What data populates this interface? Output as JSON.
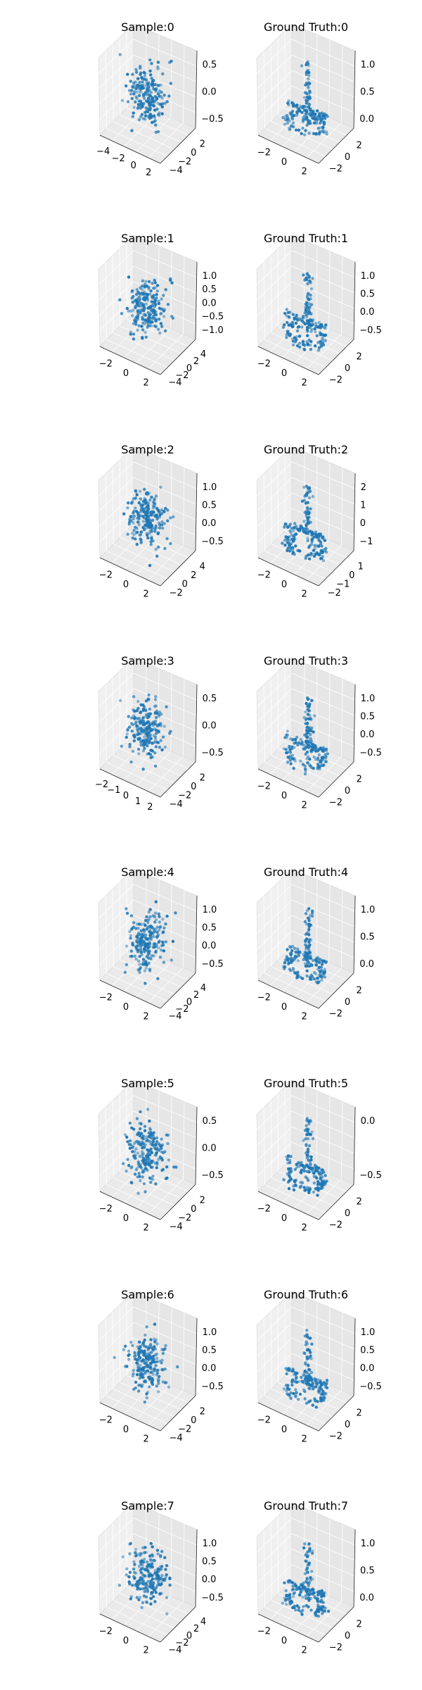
{
  "figure": {
    "background": "#ffffff",
    "pane_colors": {
      "back_left": "#f0f0f0",
      "back_right": "#e6e6e6",
      "floor": "#eaeaea"
    },
    "point_color": "#1f77b4"
  },
  "chart_data": [
    {
      "type": "scatter",
      "projection": "3d",
      "title": "Sample:0",
      "xticks": [
        "−4",
        "−2",
        "0",
        "2"
      ],
      "yticks": [
        "2",
        "0",
        "−2",
        "−4"
      ],
      "zticks": [
        "0.5",
        "0.0",
        "−0.5"
      ],
      "x": [],
      "y": [],
      "z": []
    },
    {
      "type": "scatter",
      "projection": "3d",
      "title": "Ground Truth:0",
      "xticks": [
        "−2",
        "0",
        "2"
      ],
      "yticks": [
        "2",
        "0",
        "−2"
      ],
      "zticks": [
        "1.0",
        "0.5",
        "0.0"
      ],
      "x": [],
      "y": [],
      "z": []
    },
    {
      "type": "scatter",
      "projection": "3d",
      "title": "Sample:1",
      "xticks": [
        "−2",
        "0",
        "2"
      ],
      "yticks": [
        "4",
        "2",
        "0",
        "−2",
        "−4"
      ],
      "zticks": [
        "1.0",
        "0.5",
        "0.0",
        "−0.5",
        "−1.0"
      ],
      "x": [],
      "y": [],
      "z": []
    },
    {
      "type": "scatter",
      "projection": "3d",
      "title": "Ground Truth:1",
      "xticks": [
        "−2",
        "0",
        "2"
      ],
      "yticks": [
        "2",
        "0",
        "−2"
      ],
      "zticks": [
        "1.0",
        "0.5",
        "0.0",
        "−0.5"
      ],
      "x": [],
      "y": [],
      "z": []
    },
    {
      "type": "scatter",
      "projection": "3d",
      "title": "Sample:2",
      "xticks": [
        "−2",
        "0",
        "2"
      ],
      "yticks": [
        "4",
        "2",
        "0",
        "−2"
      ],
      "zticks": [
        "1.0",
        "0.5",
        "0.0",
        "−0.5"
      ],
      "x": [],
      "y": [],
      "z": []
    },
    {
      "type": "scatter",
      "projection": "3d",
      "title": "Ground Truth:2",
      "xticks": [
        "−2",
        "0",
        "2"
      ],
      "yticks": [
        "1",
        "0",
        "−1",
        "−2"
      ],
      "zticks": [
        "2",
        "1",
        "0",
        "−1"
      ],
      "x": [],
      "y": [],
      "z": []
    },
    {
      "type": "scatter",
      "projection": "3d",
      "title": "Sample:3",
      "xticks": [
        "−2",
        "−1",
        "0",
        "1",
        "2"
      ],
      "yticks": [
        "2",
        "0",
        "−2",
        "−4"
      ],
      "zticks": [
        "0.5",
        "0.0",
        "−0.5"
      ],
      "x": [],
      "y": [],
      "z": []
    },
    {
      "type": "scatter",
      "projection": "3d",
      "title": "Ground Truth:3",
      "xticks": [
        "−2",
        "0",
        "2"
      ],
      "yticks": [
        "2",
        "0",
        "−2"
      ],
      "zticks": [
        "1.0",
        "0.5",
        "0.0",
        "−0.5"
      ],
      "x": [],
      "y": [],
      "z": []
    },
    {
      "type": "scatter",
      "projection": "3d",
      "title": "Sample:4",
      "xticks": [
        "−2",
        "0",
        "2"
      ],
      "yticks": [
        "4",
        "2",
        "0",
        "−2",
        "−4"
      ],
      "zticks": [
        "1.0",
        "0.5",
        "0.0",
        "−0.5"
      ],
      "x": [],
      "y": [],
      "z": []
    },
    {
      "type": "scatter",
      "projection": "3d",
      "title": "Ground Truth:4",
      "xticks": [
        "−2",
        "0",
        "2"
      ],
      "yticks": [
        "2",
        "0",
        "−2"
      ],
      "zticks": [
        "1.0",
        "0.5",
        "0.0"
      ],
      "x": [],
      "y": [],
      "z": []
    },
    {
      "type": "scatter",
      "projection": "3d",
      "title": "Sample:5",
      "xticks": [
        "−2",
        "0",
        "2"
      ],
      "yticks": [
        "2",
        "0",
        "−2",
        "−4"
      ],
      "zticks": [
        "0.5",
        "0.0",
        "−0.5"
      ],
      "x": [],
      "y": [],
      "z": []
    },
    {
      "type": "scatter",
      "projection": "3d",
      "title": "Ground Truth:5",
      "xticks": [
        "−2",
        "0",
        "2"
      ],
      "yticks": [
        "2",
        "0",
        "−2"
      ],
      "zticks": [
        "0.0",
        "−0.5"
      ],
      "x": [],
      "y": [],
      "z": []
    },
    {
      "type": "scatter",
      "projection": "3d",
      "title": "Sample:6",
      "xticks": [
        "−2",
        "0",
        "2"
      ],
      "yticks": [
        "2",
        "0",
        "−2",
        "−4"
      ],
      "zticks": [
        "1.0",
        "0.5",
        "0.0",
        "−0.5"
      ],
      "x": [],
      "y": [],
      "z": []
    },
    {
      "type": "scatter",
      "projection": "3d",
      "title": "Ground Truth:6",
      "xticks": [
        "−2",
        "0",
        "2"
      ],
      "yticks": [
        "2",
        "0",
        "−2"
      ],
      "zticks": [
        "1.0",
        "0.5",
        "0.0",
        "−0.5"
      ],
      "x": [],
      "y": [],
      "z": []
    },
    {
      "type": "scatter",
      "projection": "3d",
      "title": "Sample:7",
      "xticks": [
        "−2",
        "0",
        "2"
      ],
      "yticks": [
        "4",
        "2",
        "0",
        "−2",
        "−4"
      ],
      "zticks": [
        "1.0",
        "0.5",
        "0.0",
        "−0.5"
      ],
      "x": [],
      "y": [],
      "z": []
    },
    {
      "type": "scatter",
      "projection": "3d",
      "title": "Ground Truth:7",
      "xticks": [
        "−2",
        "0",
        "2"
      ],
      "yticks": [
        "2",
        "0",
        "−2"
      ],
      "zticks": [
        "1.0",
        "0.5",
        "0.0"
      ],
      "x": [],
      "y": [],
      "z": []
    }
  ]
}
